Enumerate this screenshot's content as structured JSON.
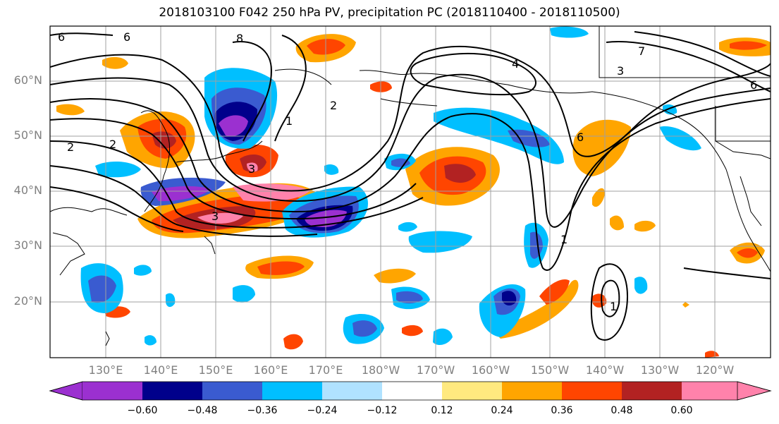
{
  "title": "2018103100 F042 250 hPa PV, precipitation PC (2018110400 - 2018110500)",
  "lat_labels": [
    "60°N",
    "50°N",
    "40°N",
    "30°N",
    "20°N"
  ],
  "lon_labels": [
    "130°E",
    "140°E",
    "150°E",
    "160°E",
    "170°E",
    "180°W",
    "170°W",
    "160°W",
    "150°W",
    "140°W",
    "130°W",
    "120°W"
  ],
  "contour_labels": [
    "6",
    "8",
    "1",
    "2",
    "3",
    "4",
    "6",
    "6",
    "1",
    "2",
    "3",
    "3",
    "1",
    "2",
    "7",
    "6"
  ],
  "colorbar": {
    "ticks": [
      "−0.60",
      "−0.48",
      "−0.36",
      "−0.24",
      "−0.12",
      "0.12",
      "0.24",
      "0.36",
      "0.48",
      "0.60"
    ],
    "colors": [
      "#9b30d0",
      "#00008b",
      "#3a5bd0",
      "#00bfff",
      "#b0e2ff",
      "#ffffff",
      "#ffe97f",
      "#ffa500",
      "#ff4500",
      "#b22222",
      "#ff82ab"
    ]
  },
  "colors": {
    "grid": "#a0a0a0",
    "contour": "#000000",
    "coast": "#000000"
  }
}
